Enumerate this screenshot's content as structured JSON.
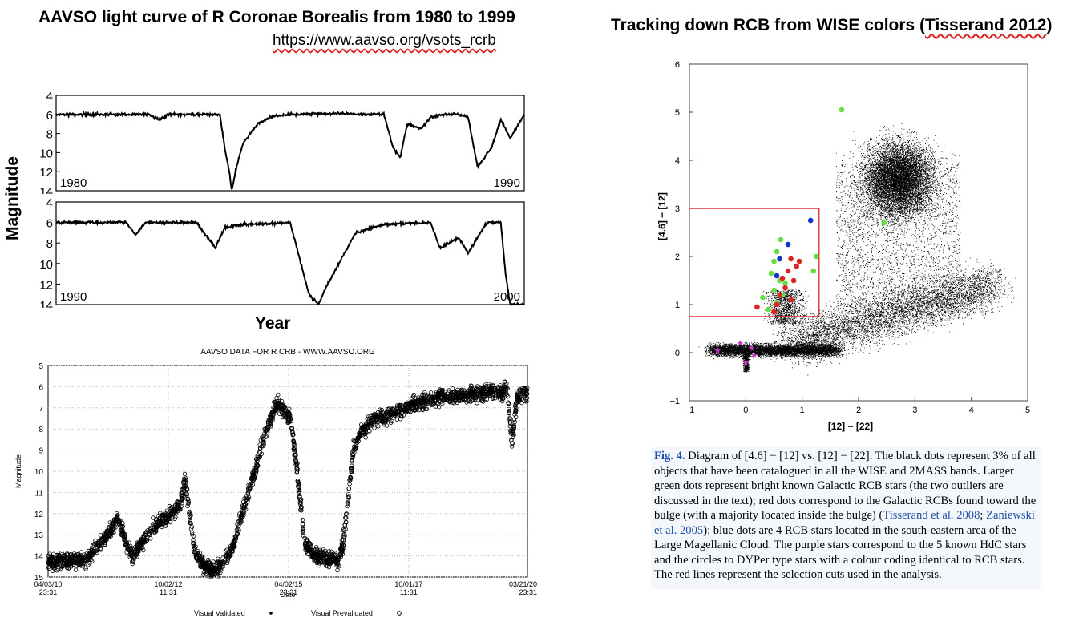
{
  "left_panel": {
    "title": "AAVSO light curve of R Coronae Borealis from 1980 to 1999",
    "url": "https://www.aavso.org/vsots_rcrb",
    "ylabel": "Magnitude",
    "xlabel": "Year"
  },
  "right_panel": {
    "title_prefix": "Tracking down RCB from WISE colors (",
    "title_cite": "Tisserand 2012",
    "title_suffix": ")",
    "caption": {
      "fig": "Fig. 4.",
      "part1": " Diagram of [4.6] − [12] vs. [12] − [22]. The black dots represent 3% of all objects that have been catalogued in all the WISE and 2MASS bands. Larger green dots represent bright known Galactic RCB stars (the two outliers are discussed in the text); red dots correspond to the Galactic RCBs found toward the bulge (with a majority located inside the bulge) (",
      "cite1": "Tisserand et al. 2008",
      "sep": "; ",
      "cite2": "Zaniewski et al. 2005",
      "part2": "); blue dots are 4 RCB stars located in the south-eastern area of the Large Magellanic Cloud. The purple stars correspond to the 5 known HdC stars and the circles to DYPer type stars with a colour coding identical to RCB stars. The red lines represent the selection cuts used in the analysis."
    }
  },
  "chart_data": [
    {
      "type": "line",
      "panel": "1980-1990",
      "xlim": [
        1980,
        1990
      ],
      "ylim": [
        4,
        14
      ],
      "y_inverted": true,
      "yticks": [
        4,
        6,
        8,
        10,
        12,
        14
      ],
      "start_label": "1980",
      "end_label": "1990",
      "x": [
        1980,
        1982,
        1982.2,
        1982.4,
        1983.5,
        1983.6,
        1983.7,
        1983.75,
        1983.85,
        1984.0,
        1984.3,
        1984.6,
        1985,
        1986,
        1987.0,
        1987.2,
        1987.35,
        1987.5,
        1987.8,
        1988,
        1988.3,
        1988.6,
        1988.8,
        1989.0,
        1989.3,
        1989.5,
        1989.7,
        1990
      ],
      "y": [
        6.0,
        6.0,
        6.6,
        6.0,
        6.0,
        9.5,
        12.0,
        14.0,
        11.5,
        9.0,
        7.0,
        6.2,
        6.0,
        5.9,
        6.0,
        9.5,
        10.5,
        7.0,
        7.5,
        6.3,
        6.0,
        6.0,
        6.3,
        11.5,
        9.5,
        6.5,
        8.5,
        6.0
      ]
    },
    {
      "type": "line",
      "panel": "1990-2000",
      "xlim": [
        1990,
        2000
      ],
      "ylim": [
        4,
        14
      ],
      "y_inverted": true,
      "yticks": [
        4,
        6,
        8,
        10,
        12,
        14
      ],
      "start_label": "1990",
      "end_label": "2000",
      "x": [
        1990,
        1991.5,
        1991.7,
        1991.9,
        1993,
        1993.4,
        1993.6,
        1994,
        1995,
        1995.4,
        1995.6,
        1995.8,
        1996.4,
        1997,
        1998.0,
        1998.2,
        1998.6,
        1998.8,
        1999.2,
        1999.5,
        1999.6,
        1999.7
      ],
      "y": [
        6.0,
        6.0,
        7.2,
        6.0,
        6.0,
        8.5,
        6.5,
        6.2,
        6.0,
        13.0,
        14.0,
        12.0,
        7.0,
        6.2,
        6.0,
        8.5,
        7.5,
        9.0,
        6.0,
        6.0,
        11.0,
        14.0
      ]
    },
    {
      "type": "scatter",
      "title": "AAVSO DATA FOR R CRB - WWW.AAVSO.ORG",
      "xlabel": "Date",
      "ylabel": "Magnitude",
      "ylim": [
        5,
        15
      ],
      "y_inverted": true,
      "yticks": [
        5,
        6,
        7,
        8,
        9,
        10,
        11,
        12,
        13,
        14,
        15
      ],
      "xticks": [
        {
          "date": "04/03/10",
          "time": "23:31"
        },
        {
          "date": "10/02/12",
          "time": "11:31"
        },
        {
          "date": "04/02/15",
          "time": "23:31"
        },
        {
          "date": "10/01/17",
          "time": "11:31"
        },
        {
          "date": "03/21/20",
          "time": "23:31"
        }
      ],
      "legend": [
        "Visual Validated",
        "Visual Prevalidated"
      ],
      "x": [
        2010.25,
        2011.0,
        2011.1,
        2011.5,
        2011.7,
        2011.9,
        2012.0,
        2012.5,
        2012.8,
        2013.0,
        2013.1,
        2013.3,
        2013.5,
        2013.7,
        2014.0,
        2014.1,
        2014.8,
        2015.0,
        2015.1,
        2015.3,
        2015.6,
        2015.8,
        2016.3,
        2016.4,
        2016.6,
        2016.8,
        2017.0,
        2017.3,
        2017.7,
        2018.0,
        2018.5,
        2019.0,
        2019.3,
        2019.5,
        2019.7,
        2019.8,
        2019.9,
        2020.0,
        2020.22
      ],
      "y": [
        14.3,
        14.2,
        14.0,
        13.0,
        12.2,
        13.5,
        14.0,
        12.5,
        12.0,
        11.5,
        10.5,
        13.8,
        14.5,
        14.8,
        14.0,
        13.5,
        8.0,
        6.8,
        7.0,
        7.5,
        13.5,
        14.0,
        14.2,
        13.2,
        9.0,
        8.0,
        7.6,
        7.4,
        7.0,
        6.7,
        6.5,
        6.4,
        6.3,
        6.2,
        6.3,
        6.0,
        8.8,
        6.5,
        6.3
      ]
    },
    {
      "type": "scatter",
      "xlabel": "[12] − [22]",
      "ylabel": "[4.6] − [12]",
      "xlim": [
        -1,
        5
      ],
      "ylim": [
        -1,
        6
      ],
      "xticks": [
        -1,
        0,
        1,
        2,
        3,
        4,
        5
      ],
      "yticks": [
        -1,
        0,
        1,
        2,
        3,
        4,
        5,
        6
      ],
      "selection_box": {
        "x": [
          -1,
          1.3
        ],
        "y": [
          0.75,
          3.0
        ]
      },
      "series": [
        {
          "color": "#66dd44",
          "x": [
            1.7,
            2.45,
            0.55,
            0.5,
            0.62,
            0.45,
            0.7,
            0.3,
            0.5,
            0.6,
            0.65,
            0.4,
            0.55,
            1.25,
            1.2
          ],
          "y": [
            5.05,
            2.7,
            2.1,
            1.9,
            2.35,
            1.65,
            1.45,
            1.15,
            1.3,
            1.5,
            1.2,
            0.9,
            1.05,
            2.0,
            1.7
          ]
        },
        {
          "color": "#dd2222",
          "x": [
            0.8,
            0.75,
            0.9,
            0.65,
            0.7,
            0.6,
            0.85,
            0.55,
            0.8,
            0.2,
            0.95,
            0.5
          ],
          "y": [
            1.95,
            1.7,
            1.8,
            1.55,
            1.35,
            1.2,
            1.5,
            1.0,
            1.1,
            0.95,
            1.9,
            0.85
          ]
        },
        {
          "color": "#1133cc",
          "x": [
            1.15,
            0.75,
            0.6,
            0.55
          ],
          "y": [
            2.75,
            2.25,
            1.95,
            1.6
          ]
        },
        {
          "color": "#cc33cc",
          "x": [
            -0.5,
            0.0,
            0.15,
            0.1,
            -0.1
          ],
          "y": [
            0.05,
            -0.2,
            -0.05,
            0.1,
            0.2
          ]
        }
      ]
    }
  ]
}
